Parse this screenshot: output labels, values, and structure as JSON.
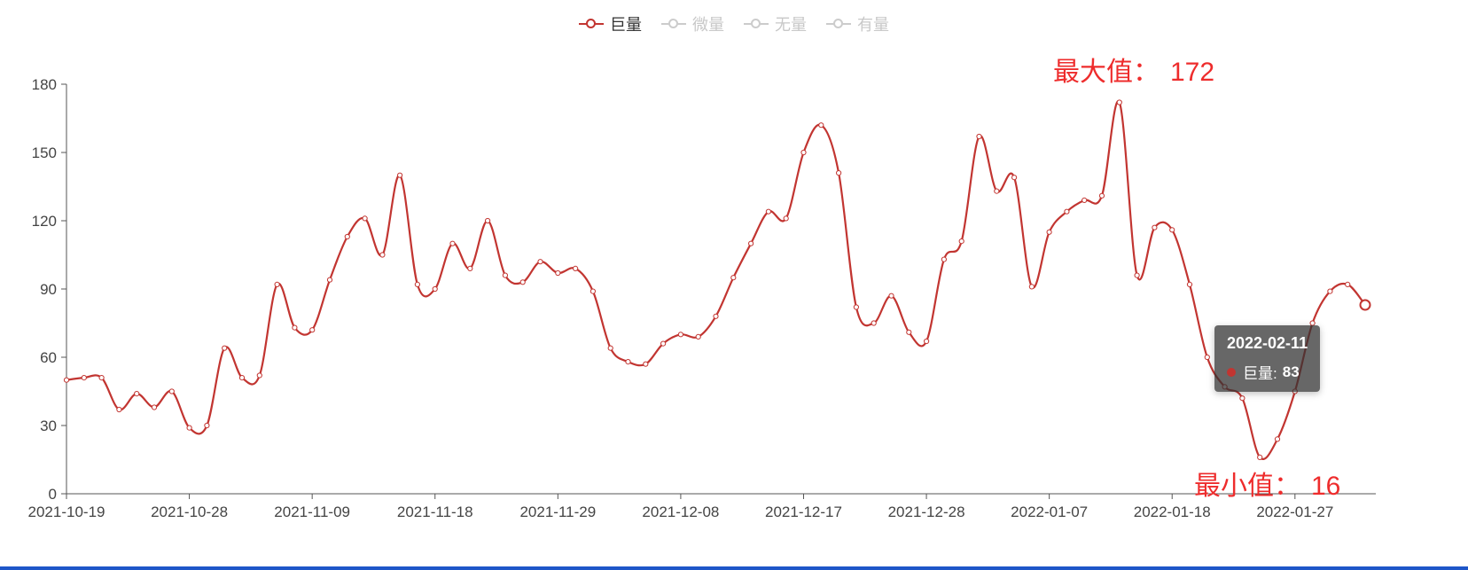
{
  "legend": {
    "items": [
      {
        "label": "巨量",
        "active": true,
        "color": "#c23531"
      },
      {
        "label": "微量",
        "active": false,
        "color": "#c8c8c8"
      },
      {
        "label": "无量",
        "active": false,
        "color": "#c8c8c8"
      },
      {
        "label": "有量",
        "active": false,
        "color": "#c8c8c8"
      }
    ]
  },
  "chart_data": {
    "type": "line",
    "smooth": true,
    "grid": false,
    "legend_position": "top-center",
    "title": "",
    "xlabel": "",
    "ylabel": "",
    "ylim": [
      0,
      180
    ],
    "y_ticks": [
      0,
      30,
      60,
      90,
      120,
      150,
      180
    ],
    "x_tick_indices": [
      0,
      7,
      14,
      21,
      28,
      35,
      42,
      49,
      56,
      63,
      70
    ],
    "x": [
      "2021-10-19",
      "2021-10-20",
      "2021-10-21",
      "2021-10-22",
      "2021-10-25",
      "2021-10-26",
      "2021-10-27",
      "2021-10-28",
      "2021-11-01",
      "2021-11-02",
      "2021-11-03",
      "2021-11-04",
      "2021-11-05",
      "2021-11-08",
      "2021-11-09",
      "2021-11-10",
      "2021-11-11",
      "2021-11-12",
      "2021-11-15",
      "2021-11-16",
      "2021-11-17",
      "2021-11-18",
      "2021-11-19",
      "2021-11-22",
      "2021-11-23",
      "2021-11-24",
      "2021-11-25",
      "2021-11-26",
      "2021-11-29",
      "2021-11-30",
      "2021-12-01",
      "2021-12-02",
      "2021-12-03",
      "2021-12-06",
      "2021-12-07",
      "2021-12-08",
      "2021-12-09",
      "2021-12-10",
      "2021-12-13",
      "2021-12-14",
      "2021-12-15",
      "2021-12-16",
      "2021-12-17",
      "2021-12-20",
      "2021-12-21",
      "2021-12-22",
      "2021-12-23",
      "2021-12-24",
      "2021-12-27",
      "2021-12-28",
      "2021-12-29",
      "2021-12-30",
      "2021-12-31",
      "2022-01-04",
      "2022-01-05",
      "2022-01-06",
      "2022-01-07",
      "2022-01-10",
      "2022-01-11",
      "2022-01-12",
      "2022-01-13",
      "2022-01-14",
      "2022-01-17",
      "2022-01-18",
      "2022-01-19",
      "2022-01-20",
      "2022-01-21",
      "2022-01-24",
      "2022-01-25",
      "2022-01-26",
      "2022-01-27",
      "2022-01-28",
      "2022-02-09",
      "2022-02-10",
      "2022-02-11"
    ],
    "series": [
      {
        "name": "巨量",
        "color": "#c23531",
        "marker": "hollow-circle",
        "values": [
          50,
          51,
          51,
          37,
          44,
          38,
          45,
          29,
          30,
          64,
          51,
          52,
          92,
          73,
          72,
          94,
          113,
          121,
          105,
          140,
          92,
          90,
          110,
          99,
          120,
          96,
          93,
          102,
          97,
          99,
          89,
          64,
          58,
          57,
          66,
          70,
          69,
          78,
          95,
          110,
          124,
          121,
          150,
          162,
          141,
          82,
          75,
          87,
          71,
          67,
          103,
          111,
          157,
          133,
          139,
          91,
          115,
          124,
          129,
          131,
          172,
          96,
          117,
          116,
          92,
          60,
          47,
          42,
          16,
          24,
          45,
          75,
          89,
          92,
          83
        ]
      }
    ],
    "inactive_series": [
      "微量",
      "无量",
      "有量"
    ],
    "annotations": {
      "max": {
        "label": "最大值：",
        "value": 172
      },
      "min": {
        "label": "最小值：",
        "value": 16
      }
    },
    "highlight_index": 74
  },
  "tooltip": {
    "date": "2022-02-11",
    "series_label": "巨量:",
    "value": "83"
  },
  "colors": {
    "line_red": "#c23531",
    "annotation_red": "#ee2c2c",
    "inactive_gray": "#c8c8c8",
    "axis_text": "#444444",
    "footer_blue": "#1e56c8",
    "tooltip_bg": "rgba(50,50,50,0.74)"
  }
}
